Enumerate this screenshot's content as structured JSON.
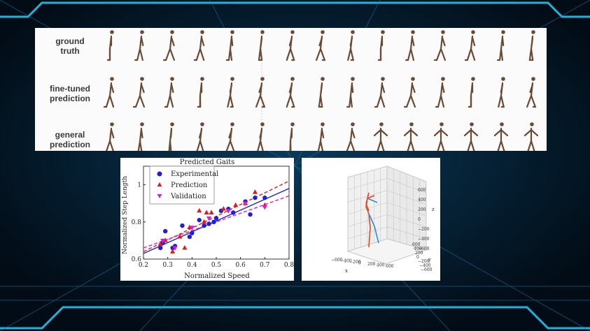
{
  "gait_panel": {
    "rows": [
      {
        "label": "ground\ntruth"
      },
      {
        "label": "fine-tuned\nprediction"
      },
      {
        "label": "general\nprediction"
      }
    ],
    "frames_per_row": 15
  },
  "chart_data": {
    "type": "scatter",
    "title": "Predicted Gaits",
    "xlabel": "Normalized Speed",
    "ylabel": "Normalized Step Length",
    "xlim": [
      0.2,
      0.8
    ],
    "ylim": [
      0.6,
      1.1
    ],
    "xticks": [
      "0.2",
      "0.3",
      "0.4",
      "0.5",
      "0.6",
      "0.7",
      "0.8"
    ],
    "yticks": [
      "0.6",
      "0.8",
      "1"
    ],
    "legend_position": "top-left",
    "series": [
      {
        "name": "Experimental",
        "marker": "circle",
        "color": "#1f1fd6",
        "points": [
          [
            0.27,
            0.66
          ],
          [
            0.28,
            0.69
          ],
          [
            0.29,
            0.75
          ],
          [
            0.32,
            0.66
          ],
          [
            0.33,
            0.67
          ],
          [
            0.36,
            0.78
          ],
          [
            0.39,
            0.72
          ],
          [
            0.4,
            0.74
          ],
          [
            0.43,
            0.81
          ],
          [
            0.45,
            0.78
          ],
          [
            0.47,
            0.79
          ],
          [
            0.49,
            0.8
          ],
          [
            0.5,
            0.82
          ],
          [
            0.52,
            0.86
          ],
          [
            0.55,
            0.87
          ],
          [
            0.57,
            0.85
          ],
          [
            0.62,
            0.91
          ],
          [
            0.64,
            0.84
          ],
          [
            0.66,
            0.93
          ],
          [
            0.7,
            0.93
          ]
        ]
      },
      {
        "name": "Prediction",
        "marker": "triangle-up",
        "color": "#e01b1b",
        "points": [
          [
            0.27,
            0.68
          ],
          [
            0.29,
            0.7
          ],
          [
            0.32,
            0.64
          ],
          [
            0.35,
            0.72
          ],
          [
            0.37,
            0.66
          ],
          [
            0.39,
            0.77
          ],
          [
            0.43,
            0.86
          ],
          [
            0.45,
            0.8
          ],
          [
            0.46,
            0.85
          ],
          [
            0.48,
            0.85
          ],
          [
            0.53,
            0.87
          ],
          [
            0.58,
            0.89
          ],
          [
            0.62,
            0.9
          ],
          [
            0.66,
            0.96
          ],
          [
            0.7,
            0.89
          ]
        ]
      },
      {
        "name": "Validation",
        "marker": "triangle-down",
        "color": "#d61fd6",
        "points": [
          [
            0.28,
            0.7
          ],
          [
            0.33,
            0.66
          ],
          [
            0.4,
            0.77
          ],
          [
            0.47,
            0.82
          ],
          [
            0.55,
            0.86
          ],
          [
            0.62,
            0.9
          ],
          [
            0.7,
            0.88
          ]
        ]
      }
    ],
    "fit_lines": [
      {
        "series": "Experimental",
        "style": "solid",
        "color": "#1f1fd6",
        "x": [
          0.2,
          0.8
        ],
        "y": [
          0.63,
          0.98
        ]
      },
      {
        "series": "Prediction",
        "style": "dashed",
        "color": "#e01b1b",
        "x": [
          0.2,
          0.8
        ],
        "y": [
          0.64,
          1.02
        ]
      },
      {
        "series": "Validation",
        "style": "dashed",
        "color": "#d61fd6",
        "x": [
          0.2,
          0.8
        ],
        "y": [
          0.66,
          0.94
        ]
      }
    ]
  },
  "plot3d": {
    "x_label": "x",
    "y_label": "y",
    "z_label": "z",
    "x_ticks": [
      "−600",
      "−400",
      "−200",
      "0",
      "200",
      "400",
      "600"
    ],
    "y_ticks": [
      "600",
      "400",
      "200",
      "0",
      "−200",
      "−400",
      "−600"
    ],
    "z_ticks": [
      "600",
      "400",
      "200",
      "0",
      "−200",
      "−400",
      "−600"
    ],
    "colors": {
      "left_limb": "#e8451e",
      "right_limb": "#2b8fcf"
    }
  },
  "colors": {
    "glow": "#22d2ff",
    "background": "#03121f"
  }
}
